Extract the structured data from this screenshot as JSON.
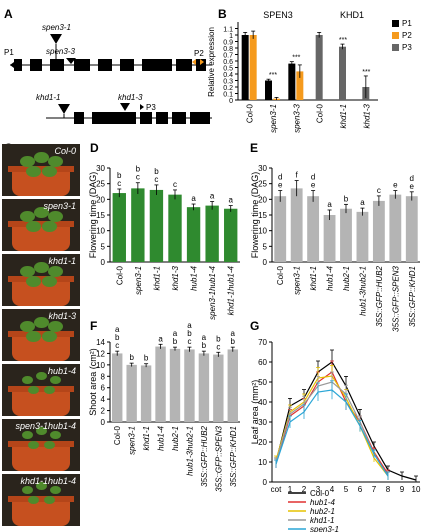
{
  "panel_labels": [
    "A",
    "B",
    "C",
    "D",
    "E",
    "F",
    "G"
  ],
  "panel_a": {
    "gene1_probes": [
      "P1",
      "P2"
    ],
    "gene1_mutants": [
      "spen3-1",
      "spen3-3"
    ],
    "gene2_probes": [
      "P3"
    ],
    "gene2_mutants": [
      "khd1-1",
      "khd1-3"
    ]
  },
  "chart_data": [
    {
      "id": "B",
      "type": "bar",
      "ylabel": "Relative expression",
      "ylim": [
        0,
        1.2
      ],
      "yticks": [
        "0",
        "0.1",
        "0.2",
        "0.3",
        "0.4",
        "0.5",
        "0.6",
        "0.7",
        "0.8",
        "0.9",
        "1",
        "1.1"
      ],
      "groups": [
        "SPEN3",
        "KHD1"
      ],
      "categories": [
        "Col-0",
        "spen3-1",
        "spen3-3",
        "Col-0",
        "khd1-1",
        "khd1-3"
      ],
      "legend": [
        "P1",
        "P2",
        "P3"
      ],
      "series": [
        {
          "name": "P1",
          "values": [
            1.0,
            0.3,
            0.56,
            null,
            null,
            null
          ],
          "err": [
            0.04,
            0.02,
            0.03,
            null,
            null,
            null
          ]
        },
        {
          "name": "P2",
          "values": [
            1.0,
            0.02,
            0.44,
            null,
            null,
            null
          ],
          "err": [
            0.06,
            0.02,
            0.1,
            null,
            null,
            null
          ]
        },
        {
          "name": "P3",
          "values": [
            null,
            null,
            null,
            1.0,
            0.82,
            0.2
          ],
          "err": [
            null,
            null,
            null,
            0.04,
            0.04,
            0.17
          ]
        }
      ],
      "stars": [
        "",
        "***",
        "***",
        "",
        "***",
        "***"
      ],
      "colors": {
        "P1": "#000000",
        "P2": "#f59a1d",
        "P3": "#666666"
      }
    },
    {
      "id": "D",
      "type": "bar",
      "ylabel": "Flowering time (DAG)",
      "ylim": [
        0,
        30
      ],
      "yticks": [
        "0",
        "5",
        "10",
        "15",
        "20",
        "25",
        "30"
      ],
      "categories": [
        "Col-0",
        "spen3-1",
        "khd1-1",
        "khd1-3",
        "hub1-4",
        "spen3-1hub1-4",
        "khd1-1hub1-4"
      ],
      "values": [
        22.0,
        23.5,
        23.0,
        21.5,
        17.5,
        18.0,
        17.0
      ],
      "err": [
        1.3,
        1.8,
        1.6,
        1.5,
        1.0,
        1.3,
        1.0
      ],
      "letters": [
        "b\nc",
        "b\nc",
        "b\nc",
        "c",
        "a",
        "a",
        "a"
      ],
      "color": "#2f8a2f"
    },
    {
      "id": "E",
      "type": "bar",
      "ylabel": "Flowering time (DAG)",
      "ylim": [
        0,
        30
      ],
      "yticks": [
        "0",
        "5",
        "10",
        "15",
        "20",
        "25",
        "30"
      ],
      "categories": [
        "Col-0",
        "spen3-1",
        "khd1-1",
        "hub1-4",
        "hub2-1",
        "hub1-3hub2-1",
        "35S::GFP::HUB2",
        "35S::GFP::SPEN3",
        "35S::GFP::KHD1"
      ],
      "values": [
        21.0,
        23.5,
        21.0,
        15.0,
        17.0,
        16.0,
        19.5,
        21.5,
        21.0
      ],
      "err": [
        1.8,
        2.5,
        1.8,
        1.6,
        1.4,
        1.2,
        1.6,
        1.3,
        1.4
      ],
      "letters": [
        "d\ne",
        "f",
        "d\ne",
        "a",
        "b",
        "a",
        "c",
        "e",
        "d\ne"
      ],
      "color": "#b4b4b4"
    },
    {
      "id": "F",
      "type": "bar",
      "ylabel": "Shoot area (cm²)",
      "ylim": [
        0,
        14
      ],
      "yticks": [
        "0",
        "2",
        "4",
        "6",
        "8",
        "10",
        "12",
        "14"
      ],
      "categories": [
        "Col-0",
        "spen3-1",
        "khd1-1",
        "hub1-4",
        "hub2-1",
        "hub1-3hub2-1",
        "35S::GFP::HUB2",
        "35S::GFP::SPEN3",
        "35S::GFP::KHD1"
      ],
      "values": [
        12.0,
        10.0,
        9.9,
        13.2,
        12.8,
        12.7,
        12.0,
        11.8,
        12.7
      ],
      "err": [
        0.4,
        0.3,
        0.3,
        0.4,
        0.3,
        0.4,
        0.4,
        0.4,
        0.4
      ],
      "letters": [
        "a\nb\nc",
        "b",
        "b",
        "a",
        "a\nb",
        "a\nb\nc",
        "a\nb",
        "b\nc",
        "a\nb"
      ],
      "color": "#b4b4b4"
    },
    {
      "id": "G",
      "type": "line",
      "ylabel": "Leaf area (mm²)",
      "ylim": [
        0,
        70
      ],
      "yticks": [
        "0",
        "10",
        "20",
        "30",
        "40",
        "50",
        "60",
        "70"
      ],
      "x": [
        "cot",
        "1",
        "2",
        "3",
        "4",
        "5",
        "6",
        "7",
        "8",
        "9",
        "10"
      ],
      "series": [
        {
          "name": "Col-0",
          "color": "#000000",
          "values": [
            10,
            38,
            42,
            55,
            60,
            48,
            33,
            18,
            6,
            3,
            1
          ]
        },
        {
          "name": "hub1-4",
          "color": "#e03030",
          "values": [
            9,
            33,
            38,
            50,
            55,
            40,
            30,
            15,
            4,
            null,
            null
          ]
        },
        {
          "name": "hub2-1",
          "color": "#e6c200",
          "values": [
            11,
            35,
            40,
            52,
            53,
            42,
            28,
            12,
            3,
            null,
            null
          ]
        },
        {
          "name": "khd1-1",
          "color": "#999999",
          "values": [
            10,
            34,
            39,
            48,
            50,
            44,
            30,
            14,
            3,
            null,
            null
          ]
        },
        {
          "name": "spen3-1",
          "color": "#2aa6d6",
          "values": [
            9,
            30,
            35,
            45,
            46,
            40,
            28,
            14,
            3,
            null,
            null
          ]
        }
      ]
    }
  ],
  "panel_c": {
    "plants": [
      "Col-0",
      "spen3-1",
      "khd1-1",
      "khd1-3",
      "hub1-4",
      "spen3-1hub1-4",
      "khd1-1hub1-4"
    ]
  }
}
